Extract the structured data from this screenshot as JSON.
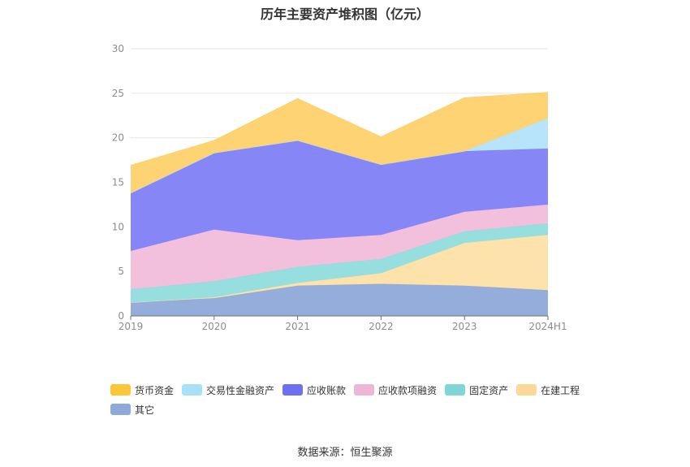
{
  "title": "历年主要资产堆积图（亿元）",
  "source": "数据来源：恒生聚源",
  "chart_data": {
    "type": "area",
    "stacked": true,
    "categories": [
      "2019",
      "2020",
      "2021",
      "2022",
      "2023",
      "2024H1"
    ],
    "ylim": [
      0,
      30
    ],
    "yticks": [
      0,
      5,
      10,
      15,
      20,
      25,
      30
    ],
    "grid": true,
    "legend_position": "bottom",
    "series": [
      {
        "name": "其它",
        "color": "#8fa9d8",
        "values": [
          1.5,
          2.0,
          3.4,
          3.6,
          3.4,
          2.9
        ]
      },
      {
        "name": "在建工程",
        "color": "#fde0a8",
        "values": [
          0.0,
          0.1,
          0.3,
          1.2,
          4.8,
          6.2
        ]
      },
      {
        "name": "固定资产",
        "color": "#91dcdc",
        "values": [
          1.5,
          1.8,
          1.8,
          1.6,
          1.3,
          1.3
        ]
      },
      {
        "name": "应收款项融资",
        "color": "#f1bddb",
        "values": [
          4.3,
          5.8,
          3.0,
          2.7,
          2.2,
          2.1
        ]
      },
      {
        "name": "应收账款",
        "color": "#7f7ff5",
        "values": [
          6.5,
          8.6,
          11.2,
          7.9,
          6.8,
          6.3
        ]
      },
      {
        "name": "交易性金融资产",
        "color": "#b3e3fb",
        "values": [
          0.0,
          0.0,
          0.0,
          0.0,
          0.0,
          3.4
        ]
      },
      {
        "name": "货币资金",
        "color": "#fdd16b",
        "values": [
          3.1,
          1.4,
          4.7,
          3.1,
          6.0,
          2.9
        ]
      }
    ]
  },
  "legend": [
    {
      "label": "货币资金",
      "color": "#fcc736"
    },
    {
      "label": "交易性金融资产",
      "color": "#a6e0fb"
    },
    {
      "label": "应收账款",
      "color": "#6f6ff2"
    },
    {
      "label": "应收款项融资",
      "color": "#eeb6d6"
    },
    {
      "label": "固定资产",
      "color": "#80d6d6"
    },
    {
      "label": "在建工程",
      "color": "#fcd99a"
    },
    {
      "label": "其它",
      "color": "#8eaadb"
    }
  ]
}
